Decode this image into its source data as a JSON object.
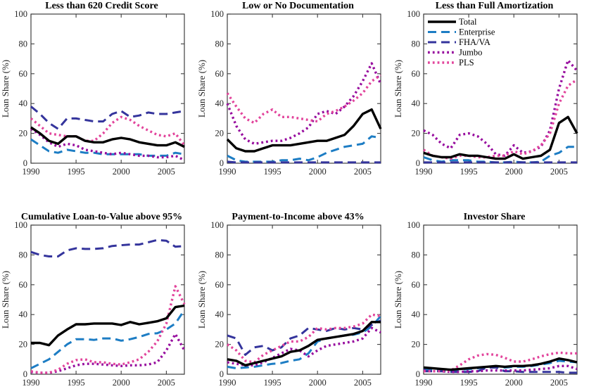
{
  "figure": {
    "ylabel": "Loan Share (%)",
    "xlim": [
      1990,
      2007
    ],
    "ylim": [
      0,
      100
    ],
    "x_ticks": [
      1990,
      1995,
      2000,
      2005
    ],
    "y_ticks": [
      0,
      20,
      40,
      60,
      80,
      100
    ],
    "axis_color": "#3f3f3f",
    "tick_label_color": "#262626",
    "series_styles": {
      "total": {
        "label": "Total",
        "color": "#000000",
        "dash": "solid",
        "width": 3.4
      },
      "enterprise": {
        "label": "Enterprise",
        "color": "#1d7dc4",
        "dash": "dashed",
        "width": 3.0
      },
      "fha_va": {
        "label": "FHA/VA",
        "color": "#34349c",
        "dash": "dashed",
        "width": 3.0
      },
      "jumbo": {
        "label": "Jumbo",
        "color": "#970c9e",
        "dash": "dotted",
        "width": 3.4
      },
      "pls": {
        "label": "PLS",
        "color": "#e2459c",
        "dash": "dotted",
        "width": 3.4
      }
    },
    "legend": {
      "chart_index": 2,
      "location": "northwest",
      "entries": [
        {
          "series": "total",
          "label": "Total"
        },
        {
          "series": "enterprise",
          "label": "Enterprise"
        },
        {
          "series": "fha_va",
          "label": "FHA/VA"
        },
        {
          "series": "jumbo",
          "label": "Jumbo"
        },
        {
          "series": "pls",
          "label": "PLS"
        }
      ]
    }
  },
  "chart_data": [
    {
      "type": "line",
      "title": "Less than 620 Credit Score",
      "ylabel": "Loan Share (%)",
      "x": [
        1990,
        1991,
        1992,
        1993,
        1994,
        1995,
        1996,
        1997,
        1998,
        1999,
        2000,
        2001,
        2002,
        2003,
        2004,
        2005,
        2006,
        2007
      ],
      "xlim": [
        1990,
        2007
      ],
      "ylim": [
        0,
        100
      ],
      "series": {
        "total": [
          24,
          20,
          15,
          13,
          18,
          18,
          15,
          14,
          14,
          16,
          17,
          16,
          14,
          13,
          12,
          12,
          14,
          11
        ],
        "enterprise": [
          16,
          12,
          8,
          7,
          9,
          8,
          7,
          7,
          6,
          6,
          6,
          6,
          6,
          5,
          5,
          5,
          7,
          6
        ],
        "fha_va": [
          38,
          33,
          27,
          23,
          30,
          30,
          29,
          28,
          28,
          33,
          35,
          31,
          32,
          34,
          33,
          33,
          34,
          35
        ],
        "jumbo": [
          23,
          19,
          14,
          11,
          13,
          12,
          9,
          8,
          7,
          6,
          7,
          6,
          5,
          5,
          4,
          4,
          5,
          2
        ],
        "pls": [
          30,
          25,
          20,
          19,
          18,
          18,
          15,
          15,
          20,
          27,
          31,
          29,
          25,
          22,
          19,
          18,
          20,
          12
        ]
      }
    },
    {
      "type": "line",
      "title": "Low or No Documentation",
      "ylabel": "Loan Share (%)",
      "x": [
        1990,
        1991,
        1992,
        1993,
        1994,
        1995,
        1996,
        1997,
        1998,
        1999,
        2000,
        2001,
        2002,
        2003,
        2004,
        2005,
        2006,
        2007
      ],
      "xlim": [
        1990,
        2007
      ],
      "ylim": [
        0,
        100
      ],
      "series": {
        "total": [
          16,
          10,
          8,
          8,
          10,
          12,
          12,
          12,
          13,
          14,
          15,
          15,
          17,
          19,
          25,
          33,
          36,
          23
        ],
        "enterprise": [
          5,
          2,
          1,
          1,
          1,
          1,
          2,
          2,
          3,
          2,
          4,
          7,
          9,
          11,
          12,
          13,
          18,
          17
        ],
        "fha_va": [
          1,
          0.5,
          0.5,
          0.5,
          0.5,
          0.5,
          0.5,
          0.5,
          0.5,
          0.5,
          0.5,
          0.5,
          0.5,
          0.5,
          0.5,
          0.5,
          0.5,
          0.5
        ],
        "jumbo": [
          40,
          25,
          16,
          13,
          14,
          15,
          15,
          17,
          20,
          24,
          33,
          35,
          33,
          38,
          45,
          55,
          67,
          53
        ],
        "pls": [
          47,
          38,
          30,
          27,
          33,
          36,
          31,
          31,
          30,
          29,
          28,
          33,
          35,
          38,
          42,
          47,
          55,
          59
        ]
      }
    },
    {
      "type": "line",
      "title": "Less than Full Amortization",
      "ylabel": "Loan Share (%)",
      "x": [
        1990,
        1991,
        1992,
        1993,
        1994,
        1995,
        1996,
        1997,
        1998,
        1999,
        2000,
        2001,
        2002,
        2003,
        2004,
        2005,
        2006,
        2007
      ],
      "xlim": [
        1990,
        2007
      ],
      "ylim": [
        0,
        100
      ],
      "series": {
        "total": [
          7,
          5,
          4,
          4,
          6,
          5,
          5,
          4,
          3,
          3,
          6,
          3,
          4,
          5,
          9,
          27,
          31,
          20
        ],
        "enterprise": [
          4,
          2,
          1,
          2,
          2,
          2,
          1,
          1,
          0.5,
          0.5,
          1,
          0.5,
          0.5,
          1,
          5,
          7,
          11,
          11
        ],
        "fha_va": [
          0.5,
          0.5,
          0.5,
          0.5,
          0.5,
          0.5,
          0.5,
          0.5,
          0.5,
          0.5,
          0.5,
          0.5,
          0.5,
          0.5,
          0.5,
          0.5,
          0.5,
          0.5
        ],
        "jumbo": [
          22,
          19,
          13,
          10,
          19,
          20,
          18,
          13,
          6,
          5,
          12,
          7,
          8,
          11,
          22,
          50,
          69,
          62
        ],
        "pls": [
          9,
          5,
          4,
          3,
          5,
          5,
          4,
          4,
          5,
          5,
          8,
          6,
          8,
          12,
          20,
          40,
          52,
          56
        ]
      }
    },
    {
      "type": "line",
      "title": "Cumulative Loan-to-Value above 95%",
      "ylabel": "Loan Share (%)",
      "x": [
        1990,
        1991,
        1992,
        1993,
        1994,
        1995,
        1996,
        1997,
        1998,
        1999,
        2000,
        2001,
        2002,
        2003,
        2004,
        2005,
        2006,
        2007
      ],
      "xlim": [
        1990,
        2007
      ],
      "ylim": [
        0,
        100
      ],
      "series": {
        "total": [
          21,
          21,
          19.5,
          26,
          30,
          33.5,
          33.5,
          34,
          34,
          34,
          33,
          35,
          33.5,
          34.5,
          35.5,
          37.5,
          45,
          46
        ],
        "enterprise": [
          4,
          7,
          10,
          15,
          20,
          23.5,
          23.5,
          23,
          24,
          24,
          22.5,
          23.5,
          25,
          27,
          27.5,
          30,
          34,
          43
        ],
        "fha_va": [
          82,
          80,
          79,
          79,
          83,
          84.5,
          84,
          84,
          84.5,
          86,
          86.5,
          87,
          87,
          88.5,
          90,
          89.5,
          85.5,
          86
        ],
        "jumbo": [
          1.5,
          1,
          1,
          2,
          4,
          6,
          7,
          7,
          6.5,
          6,
          5.5,
          6,
          6,
          6.5,
          8,
          16,
          27,
          16
        ],
        "pls": [
          2,
          1,
          1,
          3,
          7,
          9.5,
          10,
          8,
          8,
          7,
          6.5,
          8,
          10,
          15,
          22,
          34,
          59,
          47
        ]
      }
    },
    {
      "type": "line",
      "title": "Payment-to-Income above 43%",
      "ylabel": "Loan Share (%)",
      "x": [
        1990,
        1991,
        1992,
        1993,
        1994,
        1995,
        1996,
        1997,
        1998,
        1999,
        2000,
        2001,
        2002,
        2003,
        2004,
        2005,
        2006,
        2007
      ],
      "xlim": [
        1990,
        2007
      ],
      "ylim": [
        0,
        100
      ],
      "series": {
        "total": [
          10,
          9,
          6,
          7.5,
          9,
          10.5,
          12,
          15,
          16,
          19,
          23,
          24,
          25,
          26,
          27,
          29,
          35,
          35
        ],
        "enterprise": [
          5,
          4,
          4.5,
          5,
          6,
          7,
          7.5,
          9,
          10,
          14,
          22,
          24,
          25,
          26,
          26.5,
          28,
          32,
          39
        ],
        "fha_va": [
          26,
          24,
          13,
          18,
          19,
          16,
          18,
          24,
          26,
          31,
          30,
          29,
          31,
          30,
          31,
          30,
          33,
          36
        ],
        "jumbo": [
          8,
          7,
          6,
          6,
          8,
          11,
          14,
          17,
          16,
          12,
          16,
          19,
          20,
          21,
          22,
          24,
          31,
          28
        ],
        "pls": [
          20,
          16,
          9,
          8,
          13,
          16,
          19,
          22,
          22,
          25,
          31,
          30,
          31,
          31,
          32,
          34,
          40,
          39
        ]
      }
    },
    {
      "type": "line",
      "title": "Investor Share",
      "ylabel": "Loan Share (%)",
      "x": [
        1990,
        1991,
        1992,
        1993,
        1994,
        1995,
        1996,
        1997,
        1998,
        1999,
        2000,
        2001,
        2002,
        2003,
        2004,
        2005,
        2006,
        2007
      ],
      "xlim": [
        1990,
        2007
      ],
      "ylim": [
        0,
        100
      ],
      "series": {
        "total": [
          4.5,
          4,
          3.5,
          3,
          3.5,
          4,
          4.5,
          5,
          5.5,
          5,
          5.5,
          5.5,
          6,
          7,
          8.5,
          10.5,
          9.5,
          8
        ],
        "enterprise": [
          3.5,
          3,
          3,
          2.5,
          3,
          3.5,
          4,
          4.5,
          5,
          4.5,
          5,
          5,
          5.5,
          6.5,
          7.5,
          9,
          8.5,
          8
        ],
        "fha_va": [
          2,
          2,
          2,
          1.5,
          1.5,
          1.5,
          2,
          4.5,
          4.5,
          2,
          2,
          1.5,
          1.5,
          1.5,
          1.5,
          1.5,
          1,
          1
        ],
        "jumbo": [
          2.5,
          2,
          2,
          1.5,
          1.5,
          2,
          2,
          2.5,
          2.5,
          2.5,
          2.5,
          2.5,
          3,
          3.5,
          4,
          5.5,
          5.5,
          3.5
        ],
        "pls": [
          2,
          2,
          2,
          2.5,
          6,
          10,
          12.5,
          13.5,
          13,
          11,
          8.5,
          8.5,
          10,
          12,
          13.5,
          14.5,
          14,
          14
        ]
      }
    }
  ]
}
